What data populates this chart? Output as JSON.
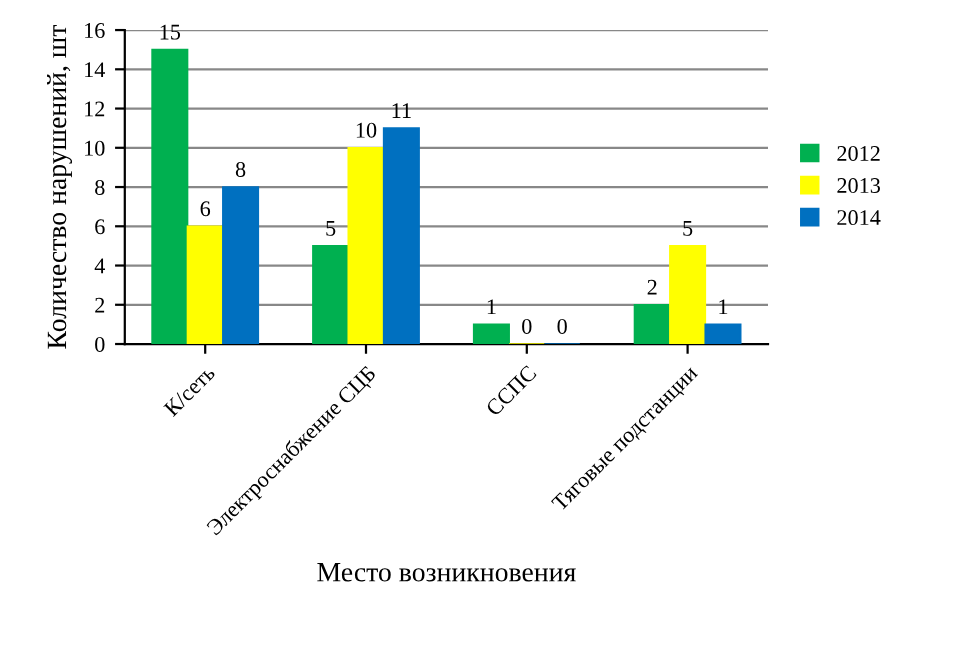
{
  "chart_data": {
    "type": "bar",
    "xlabel": "Место возникновения",
    "ylabel": "Количество нарушений, шт",
    "categories": [
      "К/сеть",
      "Электроснабжение СЦБ",
      "ССПС",
      "Тяговые подстанции"
    ],
    "series": [
      {
        "name": "2012",
        "color": "#00b050",
        "values": [
          15,
          5,
          1,
          2
        ]
      },
      {
        "name": "2013",
        "color": "#ffff00",
        "values": [
          6,
          10,
          0,
          5
        ]
      },
      {
        "name": "2014",
        "color": "#0070c0",
        "values": [
          8,
          11,
          0,
          1
        ]
      }
    ],
    "ylim": [
      0,
      16
    ],
    "yticks": [
      0,
      2,
      4,
      6,
      8,
      10,
      12,
      14,
      16
    ],
    "grid": "y",
    "legend": "right",
    "data_labels": true
  }
}
